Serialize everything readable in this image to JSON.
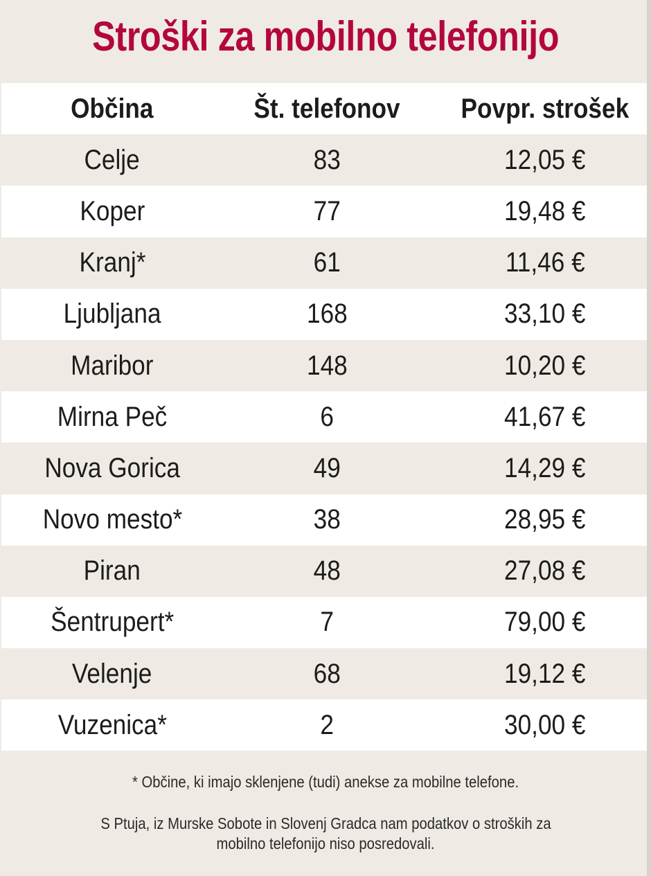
{
  "chart_data": {
    "type": "table",
    "title": "Stroški za mobilno telefonijo",
    "columns": [
      "Občina",
      "Št. telefonov",
      "Povpr. strošek"
    ],
    "rows": [
      [
        "Celje",
        "83",
        "12,05 €"
      ],
      [
        "Koper",
        "77",
        "19,48 €"
      ],
      [
        "Kranj*",
        "61",
        "11,46 €"
      ],
      [
        "Ljubljana",
        "168",
        "33,10 €"
      ],
      [
        "Maribor",
        "148",
        "10,20 €"
      ],
      [
        "Mirna Peč",
        "6",
        "41,67 €"
      ],
      [
        "Nova Gorica",
        "49",
        "14,29 €"
      ],
      [
        "Novo mesto*",
        "38",
        "28,95 €"
      ],
      [
        "Piran",
        "48",
        "27,08 €"
      ],
      [
        "Šentrupert*",
        "7",
        "79,00 €"
      ],
      [
        "Velenje",
        "68",
        "19,12 €"
      ],
      [
        "Vuzenica*",
        "2",
        "30,00 €"
      ]
    ],
    "footnote": "* Občine, ki imajo sklenjene (tudi) anekse za mobilne telefone.",
    "note_line1": "S Ptuja, iz Murske Sobote in Slovenj Gradca nam podatkov o stroških za",
    "note_line2": "mobilno telefonijo niso posredovali."
  },
  "colors": {
    "title": "#b3063f",
    "background": "#efebe4",
    "row_alt": "#ffffff"
  }
}
